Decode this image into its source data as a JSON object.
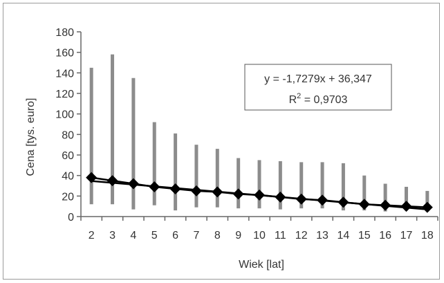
{
  "chart_data": {
    "type": "line",
    "title": "",
    "xlabel": "Wiek [lat]",
    "ylabel": "Cena [tys. euro]",
    "ylim": [
      0,
      180
    ],
    "y_ticks": [
      0,
      20,
      40,
      60,
      80,
      100,
      120,
      140,
      160,
      180
    ],
    "categories": [
      2,
      3,
      4,
      5,
      6,
      7,
      8,
      9,
      10,
      11,
      12,
      13,
      14,
      15,
      16,
      17,
      18
    ],
    "grid": false,
    "legend": "none",
    "series": [
      {
        "kind": "range",
        "color": "#8c8c8c",
        "high": [
          145,
          158,
          135,
          92,
          81,
          70,
          66,
          57,
          55,
          54,
          53,
          53,
          52,
          40,
          32,
          29,
          25
        ],
        "low": [
          12,
          12,
          7,
          11,
          6,
          9,
          9,
          8,
          8,
          7,
          8,
          8,
          6,
          6,
          5,
          6,
          5
        ]
      },
      {
        "kind": "mean",
        "marker": "diamond",
        "color": "#000000",
        "values": [
          38,
          35,
          32,
          29,
          27,
          25,
          24,
          22,
          21,
          19,
          17,
          16,
          14,
          12,
          11,
          10,
          9
        ]
      }
    ],
    "trendline": {
      "slope": -1.7279,
      "intercept": 36.347,
      "equation_label": "y = -1,7279x + 36,347",
      "r2_prefix": "R",
      "r2_sup": "2",
      "r2_value": " = 0,9703",
      "color": "#000000"
    }
  }
}
